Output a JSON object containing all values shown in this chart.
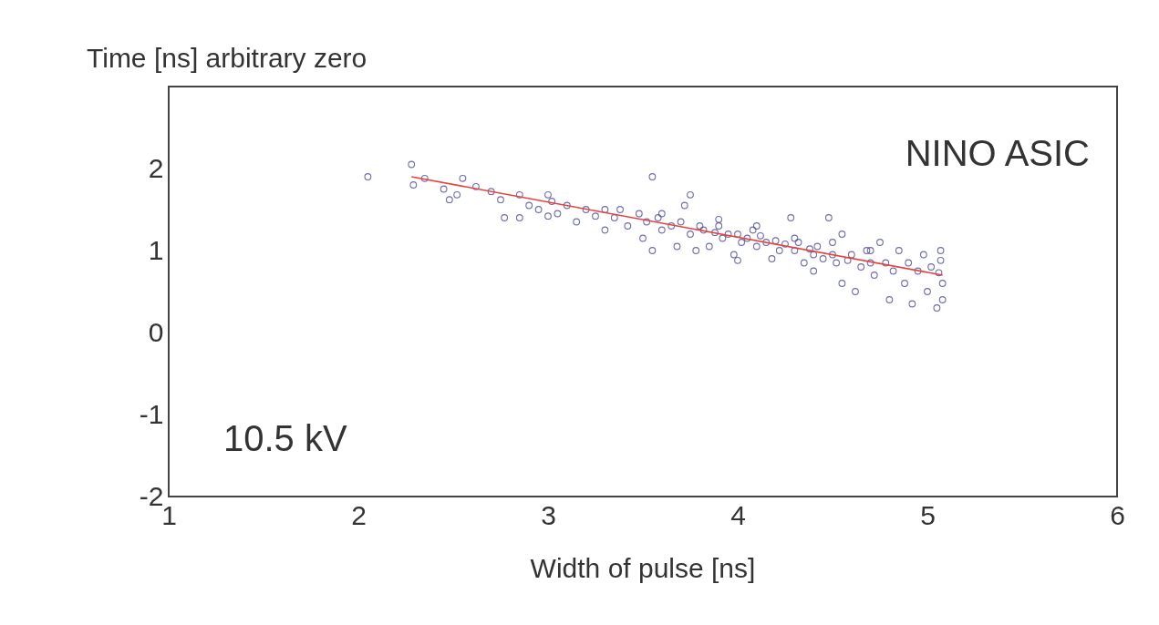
{
  "chart_data": {
    "type": "scatter",
    "xlabel": "Width of pulse [ns]",
    "ylabel": "Time [ns] arbitrary zero",
    "annotations": [
      "NINO ASIC",
      "10.5 kV"
    ],
    "xlim": [
      1,
      6
    ],
    "xticks": [
      1,
      2,
      3,
      4,
      5,
      6
    ],
    "ylim": [
      -2,
      3
    ],
    "yticks": [
      -2,
      -1,
      0,
      1,
      2
    ],
    "grid": false,
    "legend": false,
    "marker": "circle",
    "series": [
      {
        "color": "#4a4a9a",
        "x": [
          2.05,
          2.28,
          2.29,
          2.35,
          2.45,
          2.48,
          2.52,
          2.55,
          2.62,
          2.7,
          2.75,
          2.77,
          2.85,
          2.9,
          2.95,
          3.0,
          3.02,
          3.05,
          3.1,
          3.15,
          3.2,
          3.25,
          3.3,
          3.35,
          3.38,
          3.42,
          3.48,
          3.5,
          3.52,
          3.55,
          3.55,
          3.58,
          3.6,
          3.65,
          3.68,
          3.7,
          3.72,
          3.75,
          3.75,
          3.8,
          3.82,
          3.85,
          3.88,
          3.9,
          3.92,
          3.95,
          3.98,
          4.0,
          4.02,
          4.05,
          4.08,
          4.1,
          4.12,
          4.15,
          4.18,
          4.2,
          4.22,
          4.25,
          4.28,
          4.3,
          4.32,
          4.35,
          4.38,
          4.4,
          4.42,
          4.45,
          4.48,
          4.5,
          4.52,
          4.55,
          4.55,
          4.58,
          4.6,
          4.62,
          4.65,
          4.68,
          4.7,
          4.72,
          4.75,
          4.78,
          4.8,
          4.82,
          4.85,
          4.88,
          4.9,
          4.92,
          4.95,
          4.98,
          5.0,
          5.02,
          5.05,
          5.07,
          5.08,
          5.08,
          5.07,
          5.06,
          4.3,
          4.1,
          3.9,
          3.6,
          3.3,
          3.0,
          2.85,
          4.5,
          4.7,
          4.0,
          3.78,
          4.4
        ],
        "values": [
          1.9,
          2.05,
          1.8,
          1.88,
          1.75,
          1.62,
          1.68,
          1.88,
          1.78,
          1.72,
          1.62,
          1.4,
          1.68,
          1.55,
          1.5,
          1.68,
          1.6,
          1.45,
          1.55,
          1.35,
          1.5,
          1.42,
          1.25,
          1.4,
          1.5,
          1.3,
          1.45,
          1.15,
          1.35,
          1.9,
          1.0,
          1.4,
          1.25,
          1.3,
          1.05,
          1.35,
          1.55,
          1.68,
          1.2,
          1.3,
          1.25,
          1.05,
          1.22,
          1.3,
          1.15,
          1.2,
          0.95,
          1.2,
          1.1,
          1.15,
          1.25,
          1.05,
          1.18,
          1.1,
          0.9,
          1.12,
          1.0,
          1.08,
          1.4,
          1.0,
          1.1,
          0.85,
          1.02,
          0.95,
          1.05,
          0.9,
          1.4,
          0.95,
          0.85,
          1.2,
          0.6,
          0.88,
          0.95,
          0.5,
          0.8,
          1.0,
          0.85,
          0.7,
          1.1,
          0.85,
          0.4,
          0.75,
          1.0,
          0.6,
          0.85,
          0.35,
          0.75,
          0.95,
          0.5,
          0.8,
          0.3,
          1.0,
          0.6,
          0.4,
          0.88,
          0.73,
          1.15,
          1.3,
          1.38,
          1.45,
          1.5,
          1.42,
          1.4,
          1.1,
          1.0,
          0.88,
          1.0,
          0.75
        ]
      },
      {
        "type": "line",
        "color": "#e8403a",
        "line_style": "solid",
        "marker": "none",
        "x": [
          2.28,
          5.08
        ],
        "values": [
          1.9,
          0.7
        ]
      }
    ]
  }
}
